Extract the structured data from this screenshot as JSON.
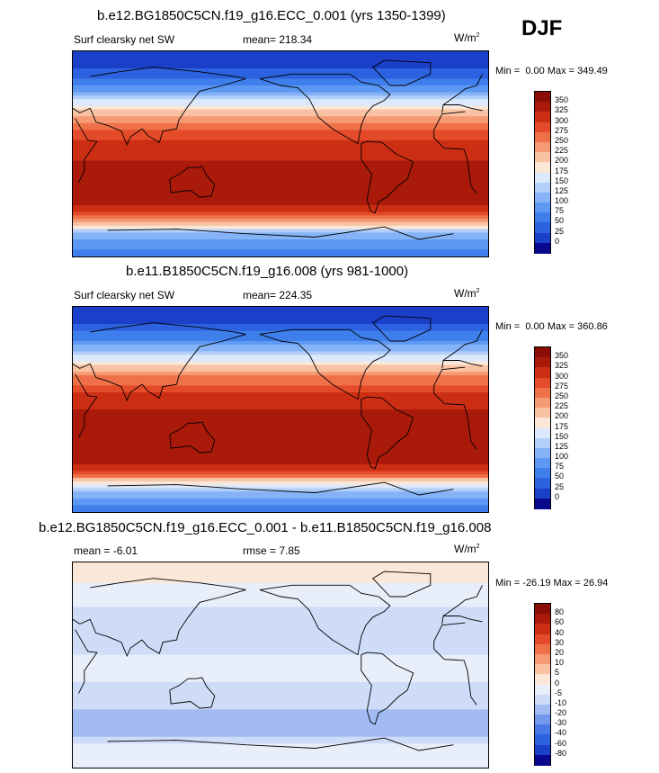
{
  "season": "DJF",
  "panels": [
    {
      "title": "b.e12.BG1850C5CN.f19_g16.ECC_0.001 (yrs 1350-1399)",
      "left_label": "Surf clearsky net SW",
      "stat_label": "mean=",
      "stat_value": "218.34",
      "units_base": "W/m",
      "units_exp": "2",
      "min_label": "Min =",
      "min_value": "0.00",
      "max_label": "Max =",
      "max_value": "349.49",
      "colorbar_labels": [
        "350",
        "325",
        "300",
        "275",
        "250",
        "225",
        "200",
        "175",
        "150",
        "125",
        "100",
        "75",
        "50",
        "25",
        "0"
      ]
    },
    {
      "title": "b.e11.B1850C5CN.f19_g16.008 (yrs 981-1000)",
      "left_label": "Surf clearsky net SW",
      "stat_label": "mean=",
      "stat_value": "224.35",
      "units_base": "W/m",
      "units_exp": "2",
      "min_label": "Min =",
      "min_value": "0.00",
      "max_label": "Max =",
      "max_value": "360.86",
      "colorbar_labels": [
        "350",
        "325",
        "300",
        "275",
        "250",
        "225",
        "200",
        "175",
        "150",
        "125",
        "100",
        "75",
        "50",
        "25",
        "0"
      ]
    },
    {
      "title": "b.e12.BG1850C5CN.f19_g16.ECC_0.001 - b.e11.B1850C5CN.f19_g16.008",
      "left_label": "mean =",
      "left_value": "-6.01",
      "stat_label": "rmse =",
      "stat_value": "7.85",
      "units_base": "W/m",
      "units_exp": "2",
      "min_label": "Min =",
      "min_value": "-26.19",
      "max_label": "Max =",
      "max_value": "26.94",
      "colorbar_labels": [
        "80",
        "60",
        "40",
        "30",
        "20",
        "10",
        "5",
        "0",
        "-5",
        "-10",
        "-20",
        "-30",
        "-40",
        "-60",
        "-80"
      ]
    }
  ],
  "chart_data": [
    {
      "type": "heatmap",
      "title": "b.e12.BG1850C5CN.f19_g16.ECC_0.001 (yrs 1350-1399)",
      "subtitle": "Surf clearsky net SW",
      "units": "W/m2",
      "mean": 218.34,
      "min": 0.0,
      "max": 349.49,
      "contour_levels": [
        0,
        25,
        50,
        75,
        100,
        125,
        150,
        175,
        200,
        225,
        250,
        275,
        300,
        325,
        350
      ],
      "colors": [
        "#08088e",
        "#1a3fc9",
        "#2c62e0",
        "#3f7fec",
        "#5d98f3",
        "#86b3f7",
        "#b2cff9",
        "#dce8fb",
        "#fbe7d8",
        "#f9c2a3",
        "#f59a73",
        "#ef7149",
        "#e44b28",
        "#cc2e14",
        "#aa1a0a",
        "#8a0e06"
      ],
      "lat_profile": [
        [
          90,
          0
        ],
        [
          75,
          20
        ],
        [
          60,
          70
        ],
        [
          45,
          160
        ],
        [
          30,
          240
        ],
        [
          15,
          295
        ],
        [
          0,
          320
        ],
        [
          -15,
          335
        ],
        [
          -30,
          340
        ],
        [
          -45,
          325
        ],
        [
          -55,
          280
        ],
        [
          -62,
          200
        ],
        [
          -70,
          120
        ],
        [
          -80,
          80
        ],
        [
          -90,
          60
        ]
      ]
    },
    {
      "type": "heatmap",
      "title": "b.e11.B1850C5CN.f19_g16.008 (yrs 981-1000)",
      "subtitle": "Surf clearsky net SW",
      "units": "W/m2",
      "mean": 224.35,
      "min": 0.0,
      "max": 360.86,
      "contour_levels": [
        0,
        25,
        50,
        75,
        100,
        125,
        150,
        175,
        200,
        225,
        250,
        275,
        300,
        325,
        350
      ],
      "colors": [
        "#08088e",
        "#1a3fc9",
        "#2c62e0",
        "#3f7fec",
        "#5d98f3",
        "#86b3f7",
        "#b2cff9",
        "#dce8fb",
        "#fbe7d8",
        "#f9c2a3",
        "#f59a73",
        "#ef7149",
        "#e44b28",
        "#cc2e14",
        "#aa1a0a",
        "#8a0e06"
      ],
      "lat_profile": [
        [
          90,
          0
        ],
        [
          75,
          25
        ],
        [
          60,
          75
        ],
        [
          45,
          165
        ],
        [
          30,
          245
        ],
        [
          15,
          300
        ],
        [
          0,
          325
        ],
        [
          -15,
          340
        ],
        [
          -30,
          348
        ],
        [
          -45,
          335
        ],
        [
          -55,
          295
        ],
        [
          -62,
          215
        ],
        [
          -70,
          130
        ],
        [
          -80,
          85
        ],
        [
          -90,
          65
        ]
      ]
    },
    {
      "type": "heatmap",
      "title": "b.e12.BG1850C5CN.f19_g16.ECC_0.001 - b.e11.B1850C5CN.f19_g16.008",
      "units": "W/m2",
      "mean": -6.01,
      "rmse": 7.85,
      "min": -26.19,
      "max": 26.94,
      "contour_levels": [
        -80,
        -60,
        -40,
        -30,
        -20,
        -10,
        -5,
        0,
        5,
        10,
        20,
        30,
        40,
        60,
        80
      ],
      "colors": [
        "#08088e",
        "#1a3fc9",
        "#2c62e0",
        "#4a78e6",
        "#7398ec",
        "#a2bcf3",
        "#cfdcf8",
        "#e8effb",
        "#fbe7d8",
        "#f9c2a3",
        "#f59a73",
        "#ef7149",
        "#e44b28",
        "#cc2e14",
        "#aa1a0a",
        "#8a0e06"
      ],
      "lat_profile": [
        [
          90,
          2
        ],
        [
          75,
          1
        ],
        [
          60,
          -3
        ],
        [
          45,
          -6
        ],
        [
          30,
          -7
        ],
        [
          15,
          -6
        ],
        [
          0,
          -4
        ],
        [
          -15,
          -5
        ],
        [
          -30,
          -8
        ],
        [
          -45,
          -12
        ],
        [
          -55,
          -18
        ],
        [
          -62,
          -12
        ],
        [
          -70,
          -4
        ],
        [
          -80,
          -2
        ],
        [
          -90,
          -1
        ]
      ]
    }
  ]
}
